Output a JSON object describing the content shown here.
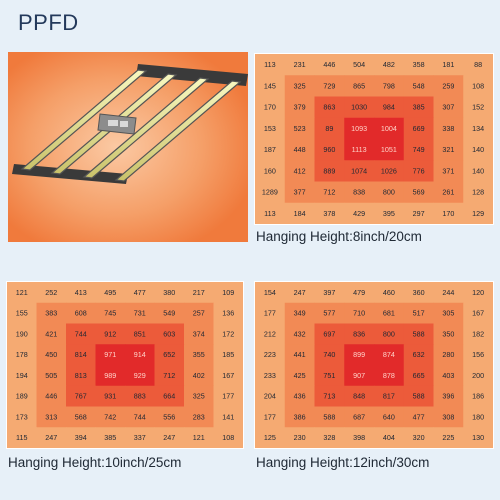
{
  "title": "PPFD",
  "colors": {
    "background": "#e7f0f8",
    "level1": "#f5aa72",
    "level2": "#f28a55",
    "level3": "#ec5b3a",
    "level4": "#e22a2a",
    "level5": "#c81818",
    "cell_text": "#1e2733",
    "core_text": "#ffd2c8"
  },
  "product_image": "led-grow-light-bar-fixture",
  "grids": [
    {
      "caption": "Hanging Height:8inch/20cm",
      "values": [
        [
          113,
          231,
          446,
          504,
          482,
          358,
          181,
          88
        ],
        [
          145,
          325,
          729,
          865,
          798,
          548,
          259,
          108
        ],
        [
          170,
          379,
          863,
          1030,
          984,
          385,
          307,
          152
        ],
        [
          153,
          523,
          89,
          1093,
          1004,
          669,
          338,
          134
        ],
        [
          187,
          448,
          960,
          1113,
          1051,
          749,
          321,
          140
        ],
        [
          160,
          412,
          889,
          1074,
          1026,
          776,
          371,
          140
        ],
        [
          1289,
          377,
          712,
          838,
          800,
          569,
          261,
          128
        ],
        [
          113,
          184,
          378,
          429,
          395,
          297,
          170,
          129
        ]
      ]
    },
    {
      "caption": "Hanging Height:10inch/25cm",
      "values": [
        [
          121,
          252,
          413,
          495,
          477,
          380,
          217,
          109
        ],
        [
          155,
          383,
          608,
          745,
          731,
          549,
          257,
          136
        ],
        [
          190,
          421,
          744,
          912,
          851,
          603,
          374,
          172
        ],
        [
          178,
          450,
          814,
          971,
          914,
          652,
          355,
          185
        ],
        [
          194,
          505,
          813,
          989,
          929,
          712,
          402,
          167
        ],
        [
          189,
          446,
          767,
          931,
          883,
          664,
          325,
          177
        ],
        [
          173,
          313,
          568,
          742,
          744,
          556,
          283,
          141
        ],
        [
          115,
          247,
          394,
          385,
          337,
          247,
          121,
          108
        ]
      ]
    },
    {
      "caption": "Hanging Height:12inch/30cm",
      "values": [
        [
          154,
          247,
          397,
          479,
          460,
          360,
          244,
          120
        ],
        [
          177,
          349,
          577,
          710,
          681,
          517,
          305,
          167
        ],
        [
          212,
          432,
          697,
          836,
          800,
          588,
          350,
          182
        ],
        [
          223,
          441,
          740,
          899,
          874,
          632,
          280,
          156
        ],
        [
          233,
          425,
          751,
          907,
          878,
          665,
          403,
          200
        ],
        [
          204,
          436,
          713,
          848,
          817,
          588,
          396,
          186
        ],
        [
          177,
          386,
          588,
          687,
          640,
          477,
          308,
          180
        ],
        [
          125,
          230,
          328,
          398,
          404,
          320,
          225,
          130
        ]
      ]
    }
  ]
}
